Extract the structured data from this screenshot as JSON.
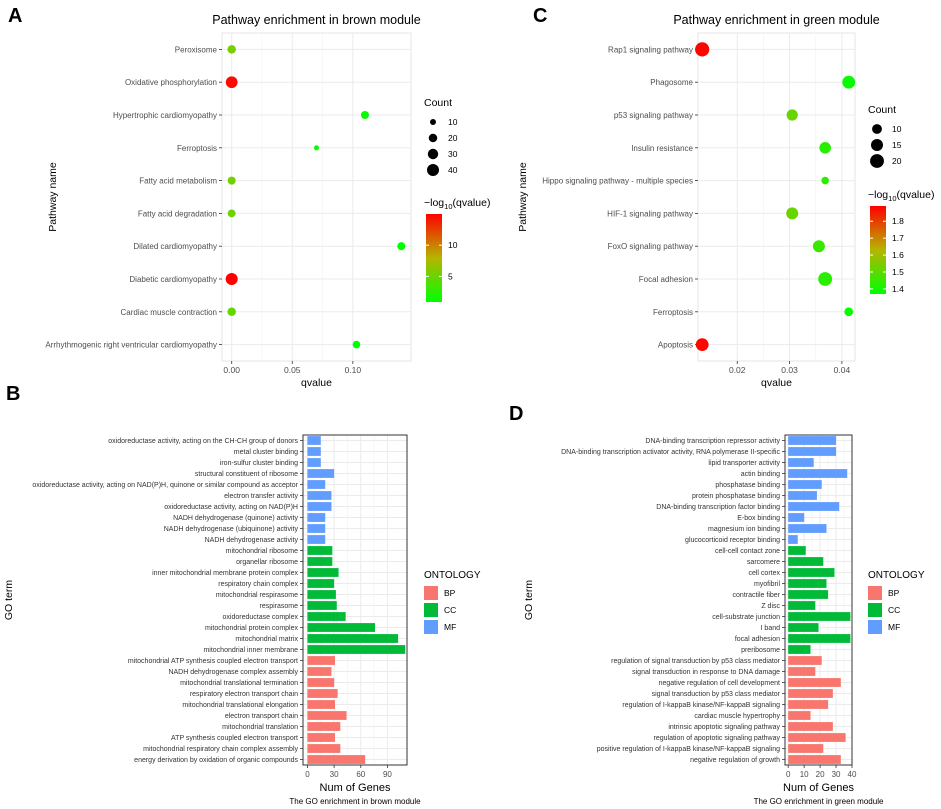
{
  "colors": {
    "grid": "#ebebeb",
    "panel_border": "#333333",
    "BP": "#f8766d",
    "CC": "#00ba38",
    "MF": "#619cff",
    "gradient_high": "#ff0000",
    "gradient_low": "#00ff00"
  },
  "chart_data": [
    {
      "panel_letter": "A",
      "type": "scatter",
      "title": "Pathway enrichment in brown module",
      "xlabel": "qvalue",
      "ylabel": "Pathway name",
      "xlim": [
        -0.008,
        0.148
      ],
      "xticks": [
        0.0,
        0.05,
        0.1
      ],
      "xtick_labels": [
        "0.00",
        "0.05",
        "0.10"
      ],
      "categories": [
        "Peroxisome",
        "Oxidative phosphorylation",
        "Hypertrophic cardiomyopathy",
        "Ferroptosis",
        "Fatty acid metabolism",
        "Fatty acid degradation",
        "Dilated cardiomyopathy",
        "Diabetic cardiomyopathy",
        "Cardiac muscle contraction",
        "Arrhythmogenic right ventricular cardiomyopathy"
      ],
      "points": [
        {
          "qvalue": 0.0,
          "count": 20,
          "neg_log10_q": 5.5
        },
        {
          "qvalue": 0.0,
          "count": 38,
          "neg_log10_q": 14.5
        },
        {
          "qvalue": 0.11,
          "count": 18,
          "neg_log10_q": 1.2
        },
        {
          "qvalue": 0.07,
          "count": 7,
          "neg_log10_q": 1.3
        },
        {
          "qvalue": 0.0,
          "count": 18,
          "neg_log10_q": 5.3
        },
        {
          "qvalue": 0.0,
          "count": 17,
          "neg_log10_q": 5.1
        },
        {
          "qvalue": 0.14,
          "count": 18,
          "neg_log10_q": 0.9
        },
        {
          "qvalue": 0.0,
          "count": 40,
          "neg_log10_q": 15.0
        },
        {
          "qvalue": 0.0,
          "count": 20,
          "neg_log10_q": 4.8
        },
        {
          "qvalue": 0.103,
          "count": 16,
          "neg_log10_q": 1.0
        }
      ],
      "size_legend": {
        "title": "Count",
        "values": [
          10,
          20,
          30,
          40
        ]
      },
      "color_legend": {
        "title_prefix": "−log",
        "title_sub": "10",
        "title_suffix": "(qvalue)",
        "ticks": [
          5,
          10
        ],
        "tick_labels": [
          "5",
          "10"
        ],
        "range": [
          0.9,
          15
        ]
      }
    },
    {
      "panel_letter": "C",
      "type": "scatter",
      "title": "Pathway enrichment in green module",
      "xlabel": "qvalue",
      "ylabel": "Pathway name",
      "xlim": [
        0.0125,
        0.0425
      ],
      "xticks": [
        0.02,
        0.03,
        0.04
      ],
      "xtick_labels": [
        "0.02",
        "0.03",
        "0.04"
      ],
      "categories": [
        "Rap1 signaling pathway",
        "Phagosome",
        "p53 signaling pathway",
        "Insulin resistance",
        "Hippo signaling pathway - multiple species",
        "HIF-1 signaling pathway",
        "FoxO signaling pathway",
        "Focal adhesion",
        "Ferroptosis",
        "Apoptosis"
      ],
      "points": [
        {
          "qvalue": 0.0133,
          "count": 21,
          "neg_log10_q": 1.88
        },
        {
          "qvalue": 0.0413,
          "count": 17,
          "neg_log10_q": 1.38
        },
        {
          "qvalue": 0.0305,
          "count": 13,
          "neg_log10_q": 1.52
        },
        {
          "qvalue": 0.0368,
          "count": 14,
          "neg_log10_q": 1.43
        },
        {
          "qvalue": 0.0368,
          "count": 6,
          "neg_log10_q": 1.43
        },
        {
          "qvalue": 0.0305,
          "count": 15,
          "neg_log10_q": 1.52
        },
        {
          "qvalue": 0.0356,
          "count": 15,
          "neg_log10_q": 1.45
        },
        {
          "qvalue": 0.0368,
          "count": 20,
          "neg_log10_q": 1.43
        },
        {
          "qvalue": 0.0413,
          "count": 8,
          "neg_log10_q": 1.38
        },
        {
          "qvalue": 0.0133,
          "count": 17,
          "neg_log10_q": 1.88
        }
      ],
      "size_legend": {
        "title": "Count",
        "values": [
          10,
          15,
          20
        ]
      },
      "color_legend": {
        "title_prefix": "−log",
        "title_sub": "10",
        "title_suffix": "(qvalue)",
        "ticks": [
          1.4,
          1.5,
          1.6,
          1.7,
          1.8
        ],
        "tick_labels": [
          "1.4",
          "1.5",
          "1.6",
          "1.7",
          "1.8"
        ],
        "range": [
          1.37,
          1.89
        ]
      }
    },
    {
      "panel_letter": "B",
      "type": "bar",
      "orientation": "horizontal",
      "title": "The GO enrichment in brown module",
      "xlabel": "Num of Genes",
      "ylabel": "GO term",
      "xlim": [
        -5,
        112
      ],
      "xticks": [
        0,
        30,
        60,
        90
      ],
      "xtick_labels": [
        "0",
        "30",
        "60",
        "90"
      ],
      "legend": {
        "title": "ONTOLOGY",
        "entries": [
          "BP",
          "CC",
          "MF"
        ]
      },
      "categories": [
        "oxidoreductase activity, acting on the CH-CH group of donors",
        "metal cluster binding",
        "iron-sulfur cluster binding",
        "structural constituent of ribosome",
        "oxidoreductase activity, acting on NAD(P)H, quinone or similar compound as acceptor",
        "electron transfer activity",
        "oxidoreductase activity, acting on NAD(P)H",
        "NADH dehydrogenase (quinone) activity",
        "NADH dehydrogenase (ubiquinone) activity",
        "NADH dehydrogenase activity",
        "mitochondrial ribosome",
        "organellar ribosome",
        "inner mitochondrial membrane protein complex",
        "respiratory chain complex",
        "mitochondrial respirasome",
        "respirasome",
        "oxidoreductase complex",
        "mitochondrial protein complex",
        "mitochondrial matrix",
        "mitochondrial inner membrane",
        "mitochondrial ATP synthesis coupled electron transport",
        "NADH dehydrogenase complex assembly",
        "mitochondrial translational termination",
        "respiratory electron transport chain",
        "mitochondrial translational elongation",
        "electron transport chain",
        "mitochondrial translation",
        "ATP synthesis coupled electron transport",
        "mitochondrial respiratory chain complex assembly",
        "energy derivation by oxidation of organic compounds"
      ],
      "values": [
        15,
        15,
        15,
        30,
        20,
        27,
        27,
        20,
        20,
        20,
        28,
        28,
        35,
        30,
        32,
        33,
        43,
        76,
        102,
        110,
        31,
        27,
        30,
        34,
        31,
        44,
        37,
        31,
        37,
        65
      ],
      "groups": [
        "MF",
        "MF",
        "MF",
        "MF",
        "MF",
        "MF",
        "MF",
        "MF",
        "MF",
        "MF",
        "CC",
        "CC",
        "CC",
        "CC",
        "CC",
        "CC",
        "CC",
        "CC",
        "CC",
        "CC",
        "BP",
        "BP",
        "BP",
        "BP",
        "BP",
        "BP",
        "BP",
        "BP",
        "BP",
        "BP"
      ]
    },
    {
      "panel_letter": "D",
      "type": "bar",
      "orientation": "horizontal",
      "title": "The GO enrichment in green module",
      "xlabel": "Num of Genes",
      "ylabel": "GO term",
      "xlim": [
        -2,
        40
      ],
      "xticks": [
        0,
        10,
        20,
        30,
        40
      ],
      "xtick_labels": [
        "0",
        "10",
        "20",
        "30",
        "40"
      ],
      "legend": {
        "title": "ONTOLOGY",
        "entries": [
          "BP",
          "CC",
          "MF"
        ]
      },
      "categories": [
        "DNA-binding transcription repressor activity",
        "DNA-binding transcription activator activity, RNA polymerase II-specific",
        "lipid transporter activity",
        "actin binding",
        "phosphatase binding",
        "protein phosphatase binding",
        "DNA-binding transcription factor binding",
        "E-box binding",
        "magnesium ion binding",
        "glucocorticoid receptor binding",
        "cell-cell contact zone",
        "sarcomere",
        "cell cortex",
        "myofibril",
        "contractile fiber",
        "Z disc",
        "cell-substrate junction",
        "I band",
        "focal adhesion",
        "preribosome",
        "regulation of signal transduction by p53 class mediator",
        "signal transduction in response to DNA damage",
        "negative regulation of cell development",
        "signal transduction by p53 class mediator",
        "regulation of I-kappaB kinase/NF-kappaB signaling",
        "cardiac muscle hypertrophy",
        "intrinsic apoptotic signaling pathway",
        "regulation of apoptotic signaling pathway",
        "positive regulation of I-kappaB kinase/NF-kappaB signaling",
        "negative regulation of growth"
      ],
      "values": [
        30,
        30,
        16,
        37,
        21,
        18,
        32,
        10,
        24,
        6,
        11,
        22,
        29,
        24,
        25,
        17,
        39,
        19,
        39,
        14,
        21,
        17,
        33,
        28,
        25,
        14,
        28,
        36,
        22,
        33
      ],
      "groups": [
        "MF",
        "MF",
        "MF",
        "MF",
        "MF",
        "MF",
        "MF",
        "MF",
        "MF",
        "MF",
        "CC",
        "CC",
        "CC",
        "CC",
        "CC",
        "CC",
        "CC",
        "CC",
        "CC",
        "CC",
        "BP",
        "BP",
        "BP",
        "BP",
        "BP",
        "BP",
        "BP",
        "BP",
        "BP",
        "BP"
      ]
    }
  ]
}
